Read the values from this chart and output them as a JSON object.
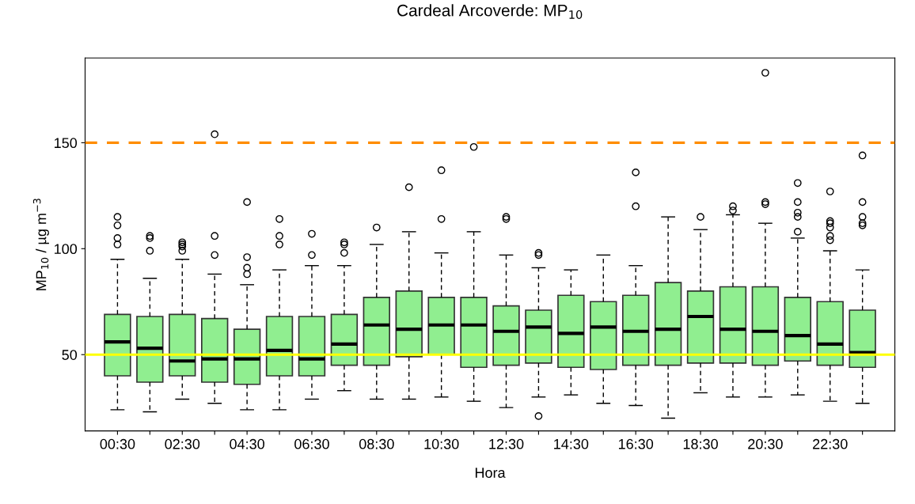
{
  "chart_data": {
    "type": "box",
    "title": "Cardeal Arcoverde: MP$_{10}$",
    "xlabel": "Hora",
    "ylabel": "MP$_{10}$ / µg m$^{−3}$",
    "categories": [
      "00:30",
      null,
      "02:30",
      null,
      "04:30",
      null,
      "06:30",
      null,
      "08:30",
      null,
      "10:30",
      null,
      "12:30",
      null,
      "14:30",
      null,
      "16:30",
      null,
      "18:30",
      null,
      "20:30",
      null,
      "22:30",
      null
    ],
    "series": [
      {
        "color": "#90ee90",
        "boxes": [
          {
            "low": 24,
            "q1": 40,
            "median": 56,
            "q3": 69,
            "high": 95,
            "outliers": [
              102,
              105,
              111,
              115
            ]
          },
          {
            "low": 23,
            "q1": 37,
            "median": 53,
            "q3": 68,
            "high": 86,
            "outliers": [
              99,
              105,
              106
            ]
          },
          {
            "low": 29,
            "q1": 40,
            "median": 47,
            "q3": 69,
            "high": 95,
            "outliers": [
              99,
              101,
              102,
              103
            ]
          },
          {
            "low": 27,
            "q1": 37,
            "median": 48,
            "q3": 67,
            "high": 88,
            "outliers": [
              97,
              106,
              154
            ]
          },
          {
            "low": 24,
            "q1": 36,
            "median": 48,
            "q3": 62,
            "high": 83,
            "outliers": [
              88,
              91,
              96,
              122
            ]
          },
          {
            "low": 24,
            "q1": 40,
            "median": 52,
            "q3": 68,
            "high": 90,
            "outliers": [
              102,
              106,
              114
            ]
          },
          {
            "low": 29,
            "q1": 40,
            "median": 48,
            "q3": 68,
            "high": 92,
            "outliers": [
              97,
              107
            ]
          },
          {
            "low": 33,
            "q1": 45,
            "median": 55,
            "q3": 69,
            "high": 92,
            "outliers": [
              98,
              102,
              103
            ]
          },
          {
            "low": 29,
            "q1": 45,
            "median": 64,
            "q3": 77,
            "high": 102,
            "outliers": [
              110
            ]
          },
          {
            "low": 29,
            "q1": 49,
            "median": 62,
            "q3": 80,
            "high": 108,
            "outliers": [
              129
            ]
          },
          {
            "low": 30,
            "q1": 50,
            "median": 64,
            "q3": 77,
            "high": 98,
            "outliers": [
              114,
              137
            ]
          },
          {
            "low": 28,
            "q1": 44,
            "median": 64,
            "q3": 77,
            "high": 108,
            "outliers": [
              148
            ]
          },
          {
            "low": 25,
            "q1": 45,
            "median": 61,
            "q3": 73,
            "high": 97,
            "outliers": [
              114,
              115
            ]
          },
          {
            "low": 30,
            "q1": 46,
            "median": 63,
            "q3": 71,
            "high": 91,
            "outliers": [
              97,
              98,
              21
            ]
          },
          {
            "low": 31,
            "q1": 44,
            "median": 60,
            "q3": 78,
            "high": 90
          },
          {
            "low": 27,
            "q1": 43,
            "median": 63,
            "q3": 75,
            "high": 97
          },
          {
            "low": 26,
            "q1": 45,
            "median": 61,
            "q3": 78,
            "high": 92,
            "outliers": [
              120,
              136
            ]
          },
          {
            "low": 20,
            "q1": 45,
            "median": 62,
            "q3": 84,
            "high": 115
          },
          {
            "low": 32,
            "q1": 46,
            "median": 68,
            "q3": 80,
            "high": 109,
            "outliers": [
              115
            ]
          },
          {
            "low": 30,
            "q1": 46,
            "median": 62,
            "q3": 82,
            "high": 116,
            "outliers": [
              118,
              120
            ]
          },
          {
            "low": 30,
            "q1": 45,
            "median": 61,
            "q3": 82,
            "high": 112,
            "outliers": [
              121,
              122,
              183
            ]
          },
          {
            "low": 31,
            "q1": 47,
            "median": 59,
            "q3": 77,
            "high": 105,
            "outliers": [
              108,
              115,
              117,
              122,
              131
            ]
          },
          {
            "low": 28,
            "q1": 45,
            "median": 55,
            "q3": 75,
            "high": 99,
            "outliers": [
              104,
              106,
              110,
              112,
              113,
              127
            ]
          },
          {
            "low": 27,
            "q1": 44,
            "median": 51,
            "q3": 71,
            "high": 90,
            "outliers": [
              111,
              112,
              115,
              122,
              144
            ]
          }
        ]
      }
    ],
    "ylim": [
      14,
      190
    ],
    "yticks": [
      50,
      100,
      150
    ],
    "grid": false,
    "legend": false,
    "ref_lines": [
      {
        "axis": "y",
        "value": 150,
        "color": "#ff8c00",
        "line_style": "dashed"
      },
      {
        "axis": "y",
        "value": 50,
        "color": "#ffff00",
        "line_style": "solid"
      }
    ]
  }
}
